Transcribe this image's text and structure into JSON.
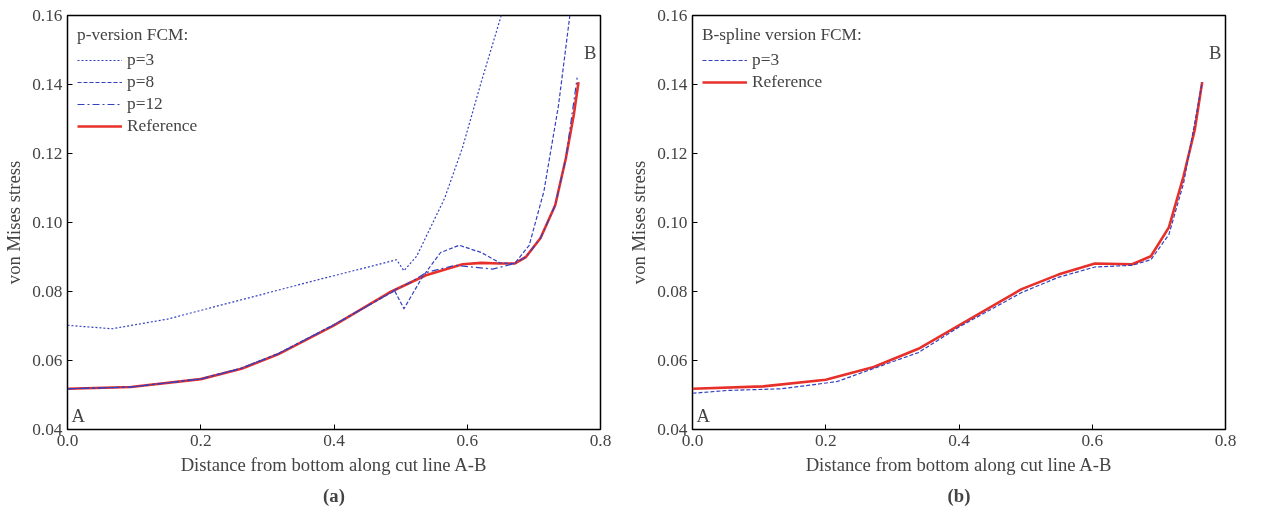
{
  "chart_data": [
    {
      "type": "line",
      "xlabel": "Distance from bottom along cut line A-B",
      "ylabel": "von Mises stress",
      "legend_title": "p-version FCM:",
      "legend": "top left",
      "grid": false,
      "xlim": [
        0,
        0.8
      ],
      "ylim": [
        0.04,
        0.16
      ],
      "xticks": [
        {
          "value": 0,
          "label": "0.0"
        },
        0.2,
        0.4,
        0.6,
        0.8
      ],
      "yticks": [
        0.04,
        0.06,
        0.08,
        {
          "value": 0.1,
          "label": "0.10"
        },
        0.12,
        0.14,
        0.16
      ],
      "annotations": [
        "A",
        "B",
        "(a)"
      ],
      "series": [
        {
          "name": "p=3",
          "color": "#3340c0",
          "line_style": "dotted",
          "x": [
            0,
            0.067,
            0.15,
            0.261,
            0.372,
            0.494,
            0.505,
            0.524,
            0.566,
            0.593,
            0.621,
            0.651
          ],
          "values": [
            0.0702,
            0.0692,
            0.072,
            0.0776,
            0.0832,
            0.0892,
            0.086,
            0.0902,
            0.107,
            0.1218,
            0.1407,
            0.16
          ]
        },
        {
          "name": "p=8",
          "color": "#3340c0",
          "line_style": "dashed",
          "x": [
            0,
            0.095,
            0.2,
            0.261,
            0.316,
            0.4,
            0.491,
            0.505,
            0.532,
            0.56,
            0.588,
            0.621,
            0.649,
            0.671,
            0.693,
            0.715,
            0.737,
            0.754
          ],
          "values": [
            0.0518,
            0.0523,
            0.0547,
            0.0578,
            0.062,
            0.0704,
            0.0802,
            0.075,
            0.084,
            0.0913,
            0.0934,
            0.0913,
            0.0883,
            0.0881,
            0.0934,
            0.109,
            0.134,
            0.16
          ]
        },
        {
          "name": "p=12",
          "color": "#3340c0",
          "line_style": "dashdot",
          "x": [
            0,
            0.095,
            0.2,
            0.261,
            0.316,
            0.4,
            0.494,
            0.516,
            0.538,
            0.582,
            0.638,
            0.671,
            0.688,
            0.71,
            0.732,
            0.748,
            0.765
          ],
          "values": [
            0.0518,
            0.0523,
            0.0546,
            0.0577,
            0.0619,
            0.0703,
            0.0807,
            0.0828,
            0.0855,
            0.0876,
            0.0865,
            0.0881,
            0.09,
            0.0955,
            0.105,
            0.1186,
            0.142
          ]
        },
        {
          "name": "Reference",
          "color": "#e8302a",
          "line_style": "solid",
          "x": [
            0,
            0.095,
            0.2,
            0.261,
            0.316,
            0.4,
            0.483,
            0.538,
            0.593,
            0.621,
            0.649,
            0.671,
            0.688,
            0.71,
            0.732,
            0.748,
            0.76,
            0.767
          ],
          "values": [
            0.0518,
            0.0523,
            0.0546,
            0.0576,
            0.0618,
            0.0702,
            0.0797,
            0.0847,
            0.0879,
            0.0883,
            0.0881,
            0.0881,
            0.09,
            0.0955,
            0.105,
            0.1186,
            0.1313,
            0.1407
          ]
        }
      ]
    },
    {
      "type": "line",
      "xlabel": "Distance from bottom along cut line A-B",
      "ylabel": "von Mises stress",
      "legend_title": "B-spline version FCM:",
      "legend": "top left",
      "grid": false,
      "xlim": [
        0,
        0.8
      ],
      "ylim": [
        0.04,
        0.16
      ],
      "xticks": [
        {
          "value": 0,
          "label": "0.0"
        },
        0.2,
        0.4,
        0.6,
        0.8
      ],
      "yticks": [
        0.04,
        0.06,
        0.08,
        {
          "value": 0.1,
          "label": "0.10"
        },
        0.12,
        0.14,
        0.16
      ],
      "annotations": [
        "A",
        "B",
        "(b)"
      ],
      "series": [
        {
          "name": "p=3",
          "color": "#3340c0",
          "line_style": "dashed",
          "x": [
            0,
            0.051,
            0.134,
            0.217,
            0.339,
            0.4,
            0.494,
            0.549,
            0.604,
            0.66,
            0.688,
            0.715,
            0.737,
            0.765
          ],
          "values": [
            0.0505,
            0.0513,
            0.0518,
            0.0539,
            0.0623,
            0.0697,
            0.0797,
            0.0841,
            0.0871,
            0.0876,
            0.0892,
            0.0965,
            0.1113,
            0.1407
          ]
        },
        {
          "name": "Reference",
          "color": "#e8302a",
          "line_style": "solid",
          "x": [
            0,
            0.106,
            0.2,
            0.272,
            0.339,
            0.4,
            0.494,
            0.549,
            0.604,
            0.66,
            0.688,
            0.715,
            0.737,
            0.754,
            0.765
          ],
          "values": [
            0.0518,
            0.0525,
            0.0544,
            0.0581,
            0.0634,
            0.0702,
            0.0807,
            0.0849,
            0.0881,
            0.0879,
            0.0902,
            0.0986,
            0.1134,
            0.127,
            0.1407
          ]
        }
      ]
    }
  ]
}
